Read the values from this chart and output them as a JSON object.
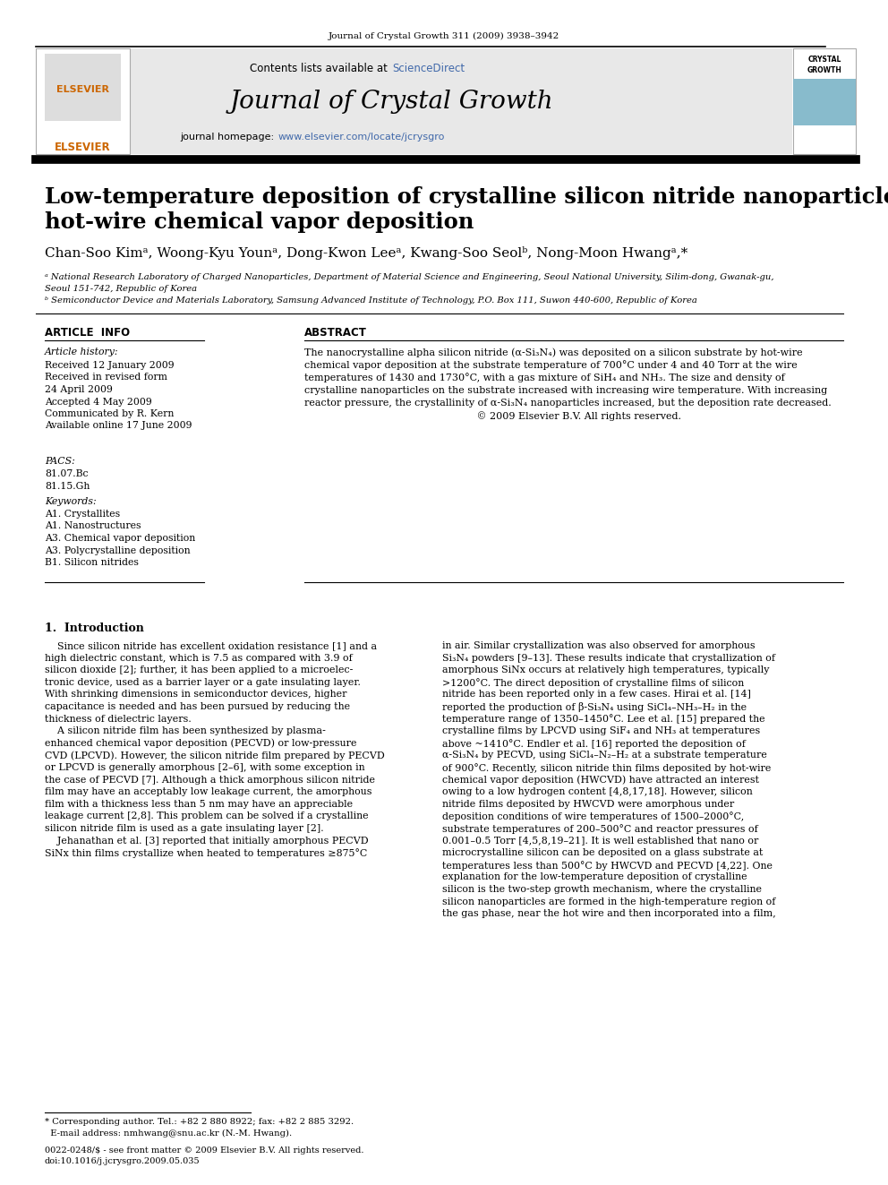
{
  "journal_ref": "Journal of Crystal Growth 311 (2009) 3938–3942",
  "contents_line": "Contents lists available at ",
  "science_direct": "ScienceDirect",
  "journal_name": "Journal of Crystal Growth",
  "homepage_prefix": "journal homepage: ",
  "homepage_url": "www.elsevier.com/locate/jcrysgro",
  "title_line1": "Low-temperature deposition of crystalline silicon nitride nanoparticles by",
  "title_line2": "hot-wire chemical vapor deposition",
  "authors": "Chan-Soo Kimᵃ, Woong-Kyu Younᵃ, Dong-Kwon Leeᵃ, Kwang-Soo Seolᵇ, Nong-Moon Hwangᵃ,*",
  "affil_a": "ᵃ National Research Laboratory of Charged Nanoparticles, Department of Material Science and Engineering, Seoul National University, Silim-dong, Gwanak-gu,",
  "affil_a2": "Seoul 151-742, Republic of Korea",
  "affil_b": "ᵇ Semiconductor Device and Materials Laboratory, Samsung Advanced Institute of Technology, P.O. Box 111, Suwon 440-600, Republic of Korea",
  "article_info_header": "ARTICLE  INFO",
  "abstract_header": "ABSTRACT",
  "article_history_header": "Article history:",
  "article_history": [
    "Received 12 January 2009",
    "Received in revised form",
    "24 April 2009",
    "Accepted 4 May 2009",
    "Communicated by R. Kern",
    "Available online 17 June 2009"
  ],
  "pacs_header": "PACS:",
  "pacs": [
    "81.07.Bc",
    "81.15.Gh"
  ],
  "keywords_header": "Keywords:",
  "keywords": [
    "A1. Crystallites",
    "A1. Nanostructures",
    "A3. Chemical vapor deposition",
    "A3. Polycrystalline deposition",
    "B1. Silicon nitrides"
  ],
  "abstract_lines": [
    "The nanocrystalline alpha silicon nitride (α-Si₃N₄) was deposited on a silicon substrate by hot-wire",
    "chemical vapor deposition at the substrate temperature of 700°C under 4 and 40 Torr at the wire",
    "temperatures of 1430 and 1730°C, with a gas mixture of SiH₄ and NH₃. The size and density of",
    "crystalline nanoparticles on the substrate increased with increasing wire temperature. With increasing",
    "reactor pressure, the crystallinity of α-Si₃N₄ nanoparticles increased, but the deposition rate decreased.",
    "                                                       © 2009 Elsevier B.V. All rights reserved."
  ],
  "intro_header": "1.  Introduction",
  "intro_col1_lines": [
    "    Since silicon nitride has excellent oxidation resistance [1] and a",
    "high dielectric constant, which is 7.5 as compared with 3.9 of",
    "silicon dioxide [2]; further, it has been applied to a microelec-",
    "tronic device, used as a barrier layer or a gate insulating layer.",
    "With shrinking dimensions in semiconductor devices, higher",
    "capacitance is needed and has been pursued by reducing the",
    "thickness of dielectric layers.",
    "    A silicon nitride film has been synthesized by plasma-",
    "enhanced chemical vapor deposition (PECVD) or low-pressure",
    "CVD (LPCVD). However, the silicon nitride film prepared by PECVD",
    "or LPCVD is generally amorphous [2–6], with some exception in",
    "the case of PECVD [7]. Although a thick amorphous silicon nitride",
    "film may have an acceptably low leakage current, the amorphous",
    "film with a thickness less than 5 nm may have an appreciable",
    "leakage current [2,8]. This problem can be solved if a crystalline",
    "silicon nitride film is used as a gate insulating layer [2].",
    "    Jehanathan et al. [3] reported that initially amorphous PECVD",
    "SiNx thin films crystallize when heated to temperatures ≥875°C"
  ],
  "intro_col2_lines": [
    "in air. Similar crystallization was also observed for amorphous",
    "Si₃N₄ powders [9–13]. These results indicate that crystallization of",
    "amorphous SiNx occurs at relatively high temperatures, typically",
    ">1200°C. The direct deposition of crystalline films of silicon",
    "nitride has been reported only in a few cases. Hirai et al. [14]",
    "reported the production of β-Si₃N₄ using SiCl₄–NH₃–H₂ in the",
    "temperature range of 1350–1450°C. Lee et al. [15] prepared the",
    "crystalline films by LPCVD using SiF₄ and NH₃ at temperatures",
    "above ~1410°C. Endler et al. [16] reported the deposition of",
    "α-Si₃N₄ by PECVD, using SiCl₄–N₂–H₂ at a substrate temperature",
    "of 900°C. Recently, silicon nitride thin films deposited by hot-wire",
    "chemical vapor deposition (HWCVD) have attracted an interest",
    "owing to a low hydrogen content [4,8,17,18]. However, silicon",
    "nitride films deposited by HWCVD were amorphous under",
    "deposition conditions of wire temperatures of 1500–2000°C,",
    "substrate temperatures of 200–500°C and reactor pressures of",
    "0.001–0.5 Torr [4,5,8,19–21]. It is well established that nano or",
    "microcrystalline silicon can be deposited on a glass substrate at",
    "temperatures less than 500°C by HWCVD and PECVD [4,22]. One",
    "explanation for the low-temperature deposition of crystalline",
    "silicon is the two-step growth mechanism, where the crystalline",
    "silicon nanoparticles are formed in the high-temperature region of",
    "the gas phase, near the hot wire and then incorporated into a film,"
  ],
  "footnote_star_lines": [
    "* Corresponding author. Tel.: +82 2 880 8922; fax: +82 2 885 3292.",
    "  E-mail address: nmhwang@snu.ac.kr (N.-M. Hwang)."
  ],
  "footnote_bottom_lines": [
    "0022-0248/$ - see front matter © 2009 Elsevier B.V. All rights reserved.",
    "doi:10.1016/j.jcrysgro.2009.05.035"
  ],
  "bg_color": "#ffffff",
  "black": "#000000",
  "orange": "#cc6600",
  "blue_link": "#4169aa"
}
